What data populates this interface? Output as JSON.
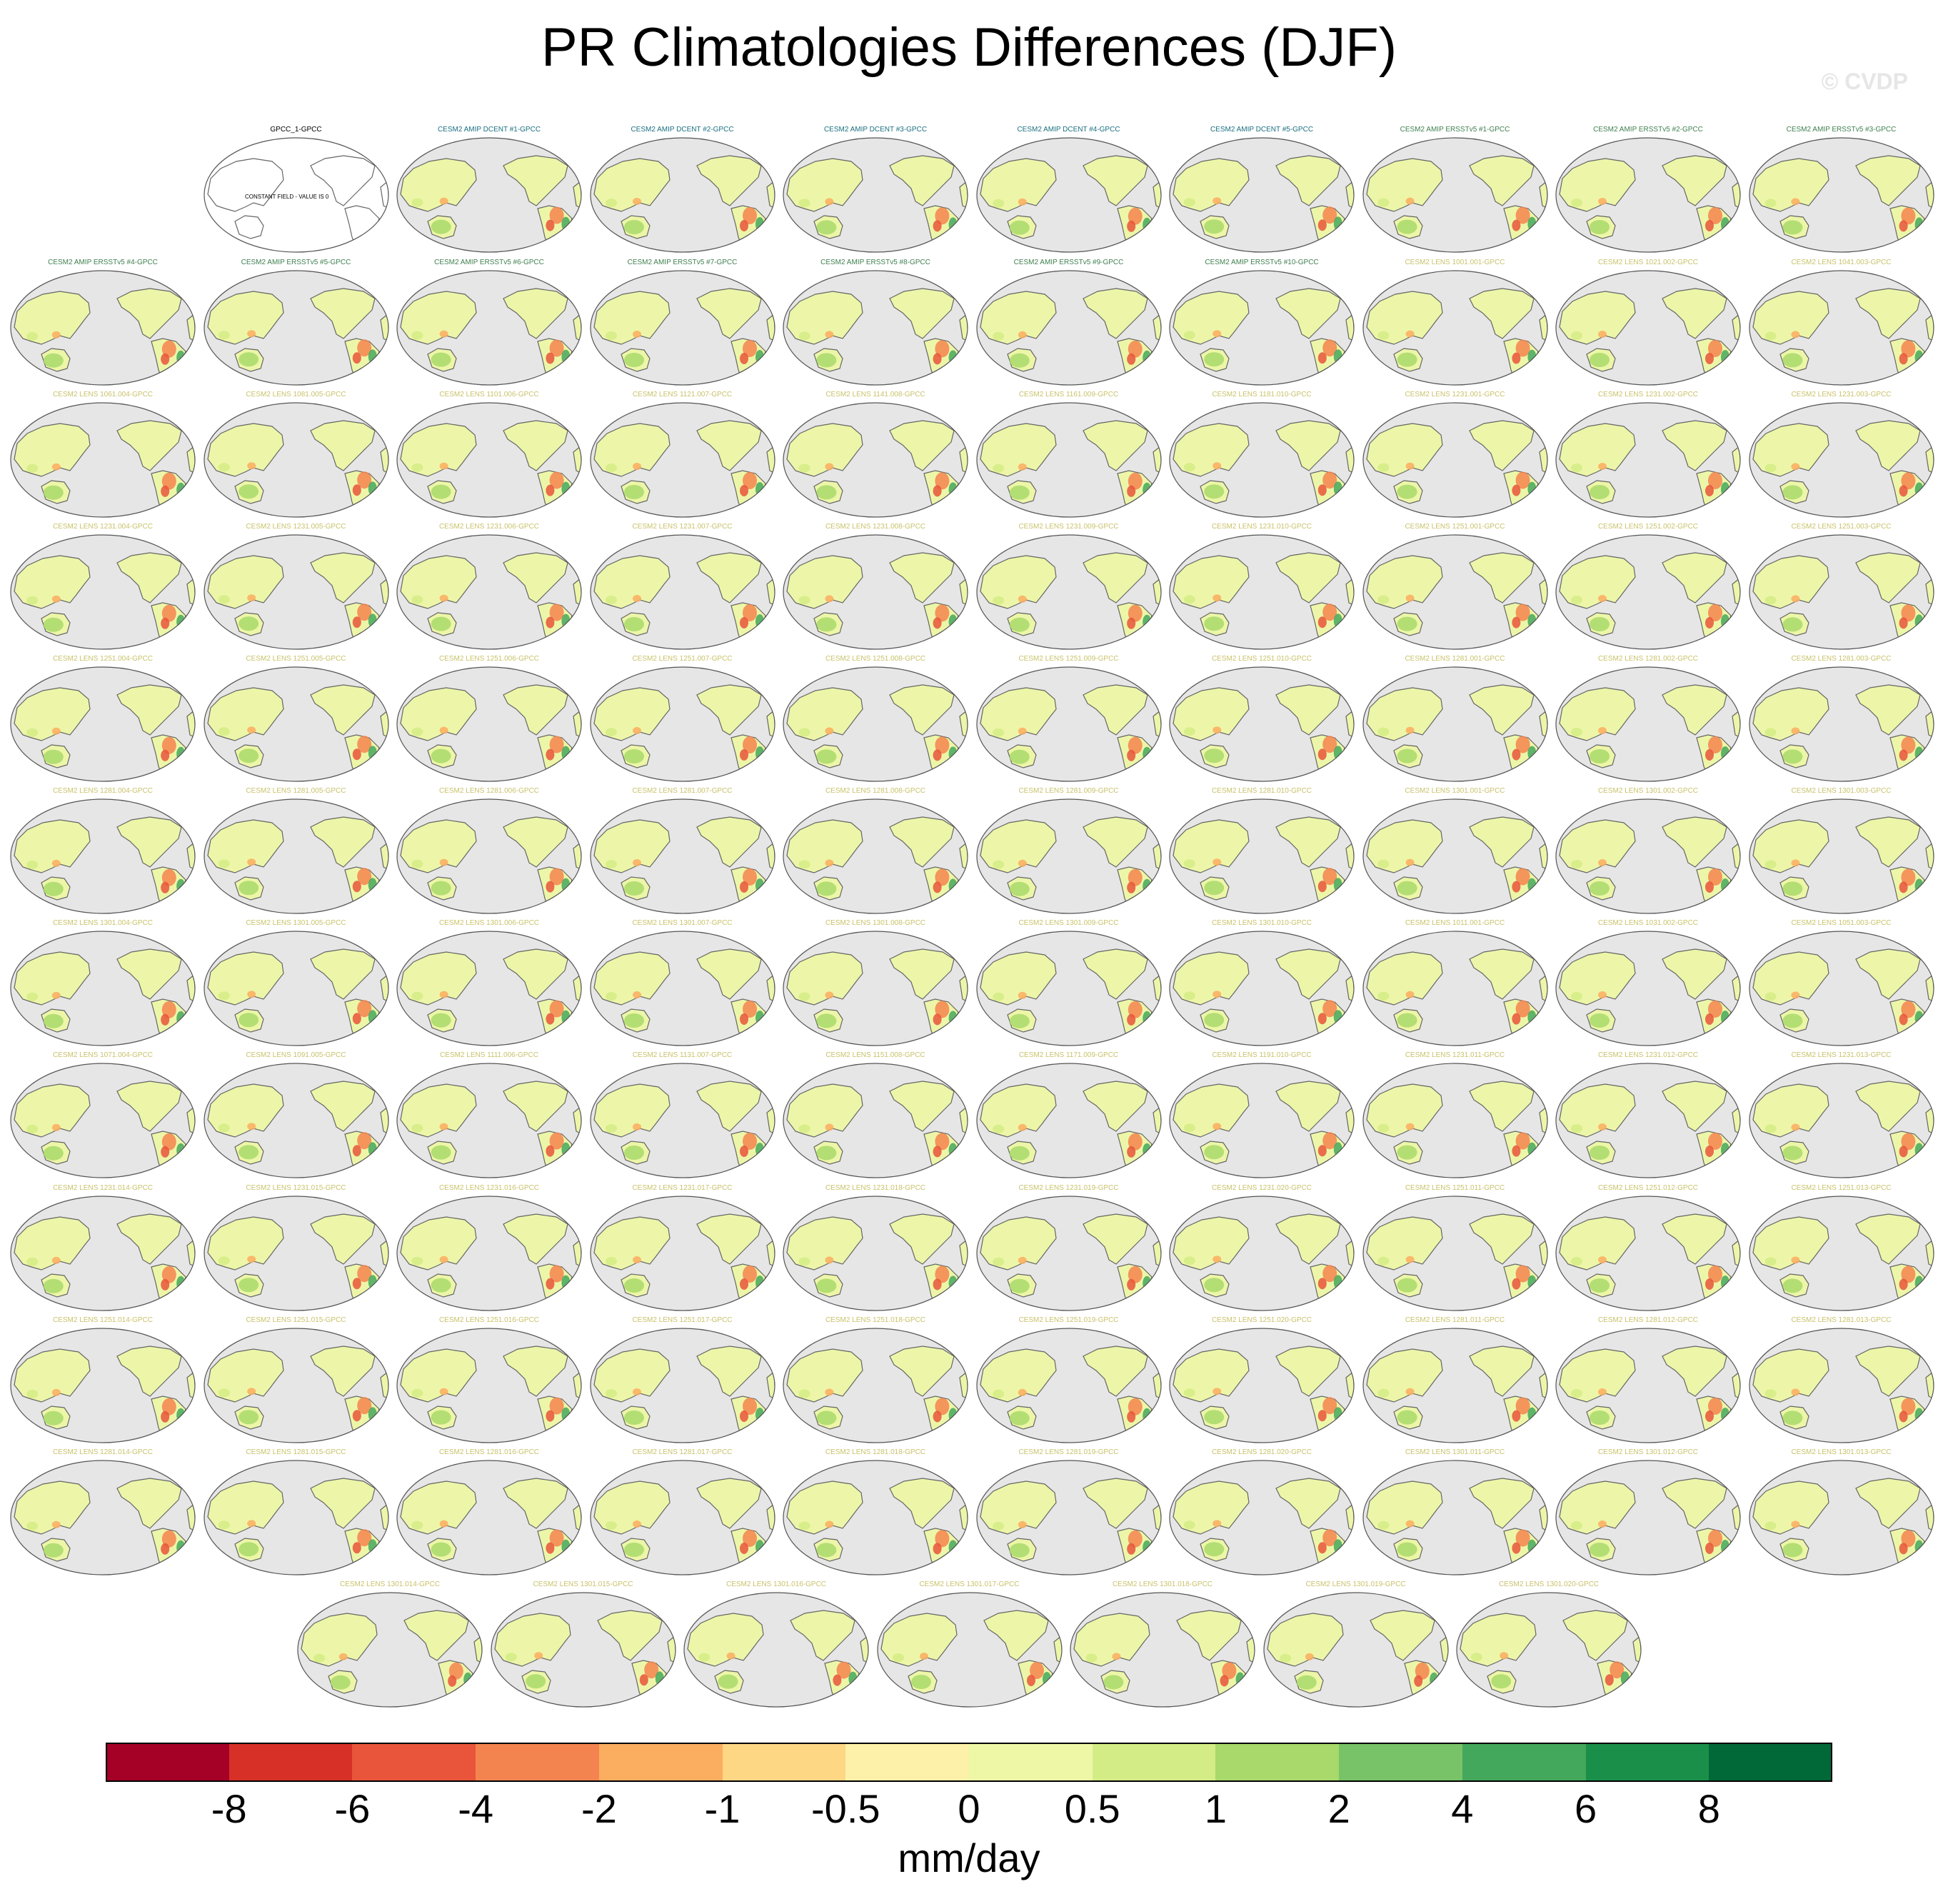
{
  "figure": {
    "title": "PR Climatologies Differences (DJF)",
    "watermark": "© CVDP",
    "units": "mm/day",
    "note_constant_field": "CONSTANT FIELD - VALUE IS 0",
    "title_colors": {
      "reference": "#000000",
      "amip": "#1a6f80",
      "amip_ersst": "#3f7f4f",
      "lens": "#c9c26a"
    },
    "map_colors": {
      "ocean": "#e6e6e6",
      "land": "#edf6a8",
      "coast": "#666666"
    }
  },
  "panels": [
    {
      "title": "GPCC_1-GPCC",
      "kind": "reference"
    },
    {
      "title": "CESM2 AMIP DCENT #1-GPCC",
      "kind": "amip"
    },
    {
      "title": "CESM2 AMIP DCENT #2-GPCC",
      "kind": "amip"
    },
    {
      "title": "CESM2 AMIP DCENT #3-GPCC",
      "kind": "amip"
    },
    {
      "title": "CESM2 AMIP DCENT #4-GPCC",
      "kind": "amip"
    },
    {
      "title": "CESM2 AMIP DCENT #5-GPCC",
      "kind": "amip"
    },
    {
      "title": "CESM2 AMIP ERSSTv5 #1-GPCC",
      "kind": "amip_ersst"
    },
    {
      "title": "CESM2 AMIP ERSSTv5 #2-GPCC",
      "kind": "amip_ersst"
    },
    {
      "title": "CESM2 AMIP ERSSTv5 #3-GPCC",
      "kind": "amip_ersst"
    },
    {
      "title": "CESM2 AMIP ERSSTv5 #4-GPCC",
      "kind": "amip_ersst"
    },
    {
      "title": "CESM2 AMIP ERSSTv5 #5-GPCC",
      "kind": "amip_ersst"
    },
    {
      "title": "CESM2 AMIP ERSSTv5 #6-GPCC",
      "kind": "amip_ersst"
    },
    {
      "title": "CESM2 AMIP ERSSTv5 #7-GPCC",
      "kind": "amip_ersst"
    },
    {
      "title": "CESM2 AMIP ERSSTv5 #8-GPCC",
      "kind": "amip_ersst"
    },
    {
      "title": "CESM2 AMIP ERSSTv5 #9-GPCC",
      "kind": "amip_ersst"
    },
    {
      "title": "CESM2 AMIP ERSSTv5 #10-GPCC",
      "kind": "amip_ersst"
    },
    {
      "title": "CESM2 LENS 1001.001-GPCC",
      "kind": "lens"
    },
    {
      "title": "CESM2 LENS 1021.002-GPCC",
      "kind": "lens"
    },
    {
      "title": "CESM2 LENS 1041.003-GPCC",
      "kind": "lens"
    },
    {
      "title": "CESM2 LENS 1061.004-GPCC",
      "kind": "lens"
    },
    {
      "title": "CESM2 LENS 1081.005-GPCC",
      "kind": "lens"
    },
    {
      "title": "CESM2 LENS 1101.006-GPCC",
      "kind": "lens"
    },
    {
      "title": "CESM2 LENS 1121.007-GPCC",
      "kind": "lens"
    },
    {
      "title": "CESM2 LENS 1141.008-GPCC",
      "kind": "lens"
    },
    {
      "title": "CESM2 LENS 1161.009-GPCC",
      "kind": "lens"
    },
    {
      "title": "CESM2 LENS 1181.010-GPCC",
      "kind": "lens"
    },
    {
      "title": "CESM2 LENS 1231.001-GPCC",
      "kind": "lens"
    },
    {
      "title": "CESM2 LENS 1231.002-GPCC",
      "kind": "lens"
    },
    {
      "title": "CESM2 LENS 1231.003-GPCC",
      "kind": "lens"
    },
    {
      "title": "CESM2 LENS 1231.004-GPCC",
      "kind": "lens"
    },
    {
      "title": "CESM2 LENS 1231.005-GPCC",
      "kind": "lens"
    },
    {
      "title": "CESM2 LENS 1231.006-GPCC",
      "kind": "lens"
    },
    {
      "title": "CESM2 LENS 1231.007-GPCC",
      "kind": "lens"
    },
    {
      "title": "CESM2 LENS 1231.008-GPCC",
      "kind": "lens"
    },
    {
      "title": "CESM2 LENS 1231.009-GPCC",
      "kind": "lens"
    },
    {
      "title": "CESM2 LENS 1231.010-GPCC",
      "kind": "lens"
    },
    {
      "title": "CESM2 LENS 1251.001-GPCC",
      "kind": "lens"
    },
    {
      "title": "CESM2 LENS 1251.002-GPCC",
      "kind": "lens"
    },
    {
      "title": "CESM2 LENS 1251.003-GPCC",
      "kind": "lens"
    },
    {
      "title": "CESM2 LENS 1251.004-GPCC",
      "kind": "lens"
    },
    {
      "title": "CESM2 LENS 1251.005-GPCC",
      "kind": "lens"
    },
    {
      "title": "CESM2 LENS 1251.006-GPCC",
      "kind": "lens"
    },
    {
      "title": "CESM2 LENS 1251.007-GPCC",
      "kind": "lens"
    },
    {
      "title": "CESM2 LENS 1251.008-GPCC",
      "kind": "lens"
    },
    {
      "title": "CESM2 LENS 1251.009-GPCC",
      "kind": "lens"
    },
    {
      "title": "CESM2 LENS 1251.010-GPCC",
      "kind": "lens"
    },
    {
      "title": "CESM2 LENS 1281.001-GPCC",
      "kind": "lens"
    },
    {
      "title": "CESM2 LENS 1281.002-GPCC",
      "kind": "lens"
    },
    {
      "title": "CESM2 LENS 1281.003-GPCC",
      "kind": "lens"
    },
    {
      "title": "CESM2 LENS 1281.004-GPCC",
      "kind": "lens"
    },
    {
      "title": "CESM2 LENS 1281.005-GPCC",
      "kind": "lens"
    },
    {
      "title": "CESM2 LENS 1281.006-GPCC",
      "kind": "lens"
    },
    {
      "title": "CESM2 LENS 1281.007-GPCC",
      "kind": "lens"
    },
    {
      "title": "CESM2 LENS 1281.008-GPCC",
      "kind": "lens"
    },
    {
      "title": "CESM2 LENS 1281.009-GPCC",
      "kind": "lens"
    },
    {
      "title": "CESM2 LENS 1281.010-GPCC",
      "kind": "lens"
    },
    {
      "title": "CESM2 LENS 1301.001-GPCC",
      "kind": "lens"
    },
    {
      "title": "CESM2 LENS 1301.002-GPCC",
      "kind": "lens"
    },
    {
      "title": "CESM2 LENS 1301.003-GPCC",
      "kind": "lens"
    },
    {
      "title": "CESM2 LENS 1301.004-GPCC",
      "kind": "lens"
    },
    {
      "title": "CESM2 LENS 1301.005-GPCC",
      "kind": "lens"
    },
    {
      "title": "CESM2 LENS 1301.006-GPCC",
      "kind": "lens"
    },
    {
      "title": "CESM2 LENS 1301.007-GPCC",
      "kind": "lens"
    },
    {
      "title": "CESM2 LENS 1301.008-GPCC",
      "kind": "lens"
    },
    {
      "title": "CESM2 LENS 1301.009-GPCC",
      "kind": "lens"
    },
    {
      "title": "CESM2 LENS 1301.010-GPCC",
      "kind": "lens"
    },
    {
      "title": "CESM2 LENS 1011.001-GPCC",
      "kind": "lens"
    },
    {
      "title": "CESM2 LENS 1031.002-GPCC",
      "kind": "lens"
    },
    {
      "title": "CESM2 LENS 1051.003-GPCC",
      "kind": "lens"
    },
    {
      "title": "CESM2 LENS 1071.004-GPCC",
      "kind": "lens"
    },
    {
      "title": "CESM2 LENS 1091.005-GPCC",
      "kind": "lens"
    },
    {
      "title": "CESM2 LENS 1111.006-GPCC",
      "kind": "lens"
    },
    {
      "title": "CESM2 LENS 1131.007-GPCC",
      "kind": "lens"
    },
    {
      "title": "CESM2 LENS 1151.008-GPCC",
      "kind": "lens"
    },
    {
      "title": "CESM2 LENS 1171.009-GPCC",
      "kind": "lens"
    },
    {
      "title": "CESM2 LENS 1191.010-GPCC",
      "kind": "lens"
    },
    {
      "title": "CESM2 LENS 1231.011-GPCC",
      "kind": "lens"
    },
    {
      "title": "CESM2 LENS 1231.012-GPCC",
      "kind": "lens"
    },
    {
      "title": "CESM2 LENS 1231.013-GPCC",
      "kind": "lens"
    },
    {
      "title": "CESM2 LENS 1231.014-GPCC",
      "kind": "lens"
    },
    {
      "title": "CESM2 LENS 1231.015-GPCC",
      "kind": "lens"
    },
    {
      "title": "CESM2 LENS 1231.016-GPCC",
      "kind": "lens"
    },
    {
      "title": "CESM2 LENS 1231.017-GPCC",
      "kind": "lens"
    },
    {
      "title": "CESM2 LENS 1231.018-GPCC",
      "kind": "lens"
    },
    {
      "title": "CESM2 LENS 1231.019-GPCC",
      "kind": "lens"
    },
    {
      "title": "CESM2 LENS 1231.020-GPCC",
      "kind": "lens"
    },
    {
      "title": "CESM2 LENS 1251.011-GPCC",
      "kind": "lens"
    },
    {
      "title": "CESM2 LENS 1251.012-GPCC",
      "kind": "lens"
    },
    {
      "title": "CESM2 LENS 1251.013-GPCC",
      "kind": "lens"
    },
    {
      "title": "CESM2 LENS 1251.014-GPCC",
      "kind": "lens"
    },
    {
      "title": "CESM2 LENS 1251.015-GPCC",
      "kind": "lens"
    },
    {
      "title": "CESM2 LENS 1251.016-GPCC",
      "kind": "lens"
    },
    {
      "title": "CESM2 LENS 1251.017-GPCC",
      "kind": "lens"
    },
    {
      "title": "CESM2 LENS 1251.018-GPCC",
      "kind": "lens"
    },
    {
      "title": "CESM2 LENS 1251.019-GPCC",
      "kind": "lens"
    },
    {
      "title": "CESM2 LENS 1251.020-GPCC",
      "kind": "lens"
    },
    {
      "title": "CESM2 LENS 1281.011-GPCC",
      "kind": "lens"
    },
    {
      "title": "CESM2 LENS 1281.012-GPCC",
      "kind": "lens"
    },
    {
      "title": "CESM2 LENS 1281.013-GPCC",
      "kind": "lens"
    },
    {
      "title": "CESM2 LENS 1281.014-GPCC",
      "kind": "lens"
    },
    {
      "title": "CESM2 LENS 1281.015-GPCC",
      "kind": "lens"
    },
    {
      "title": "CESM2 LENS 1281.016-GPCC",
      "kind": "lens"
    },
    {
      "title": "CESM2 LENS 1281.017-GPCC",
      "kind": "lens"
    },
    {
      "title": "CESM2 LENS 1281.018-GPCC",
      "kind": "lens"
    },
    {
      "title": "CESM2 LENS 1281.019-GPCC",
      "kind": "lens"
    },
    {
      "title": "CESM2 LENS 1281.020-GPCC",
      "kind": "lens"
    },
    {
      "title": "CESM2 LENS 1301.011-GPCC",
      "kind": "lens"
    },
    {
      "title": "CESM2 LENS 1301.012-GPCC",
      "kind": "lens"
    },
    {
      "title": "CESM2 LENS 1301.013-GPCC",
      "kind": "lens"
    },
    {
      "title": "CESM2 LENS 1301.014-GPCC",
      "kind": "lens"
    },
    {
      "title": "CESM2 LENS 1301.015-GPCC",
      "kind": "lens"
    },
    {
      "title": "CESM2 LENS 1301.016-GPCC",
      "kind": "lens"
    },
    {
      "title": "CESM2 LENS 1301.017-GPCC",
      "kind": "lens"
    },
    {
      "title": "CESM2 LENS 1301.018-GPCC",
      "kind": "lens"
    },
    {
      "title": "CESM2 LENS 1301.019-GPCC",
      "kind": "lens"
    },
    {
      "title": "CESM2 LENS 1301.020-GPCC",
      "kind": "lens"
    }
  ],
  "colorbar": {
    "labels": [
      "-8",
      "-6",
      "-4",
      "-2",
      "-1",
      "-0.5",
      "0",
      "0.5",
      "1",
      "2",
      "4",
      "6",
      "8"
    ],
    "colors": [
      "#a50026",
      "#d73027",
      "#e8553a",
      "#f4844f",
      "#fbad60",
      "#fdd784",
      "#fdf1a9",
      "#eef7a6",
      "#d4ec85",
      "#a8d96a",
      "#78c367",
      "#44a85c",
      "#1a8f4a",
      "#016837"
    ]
  }
}
